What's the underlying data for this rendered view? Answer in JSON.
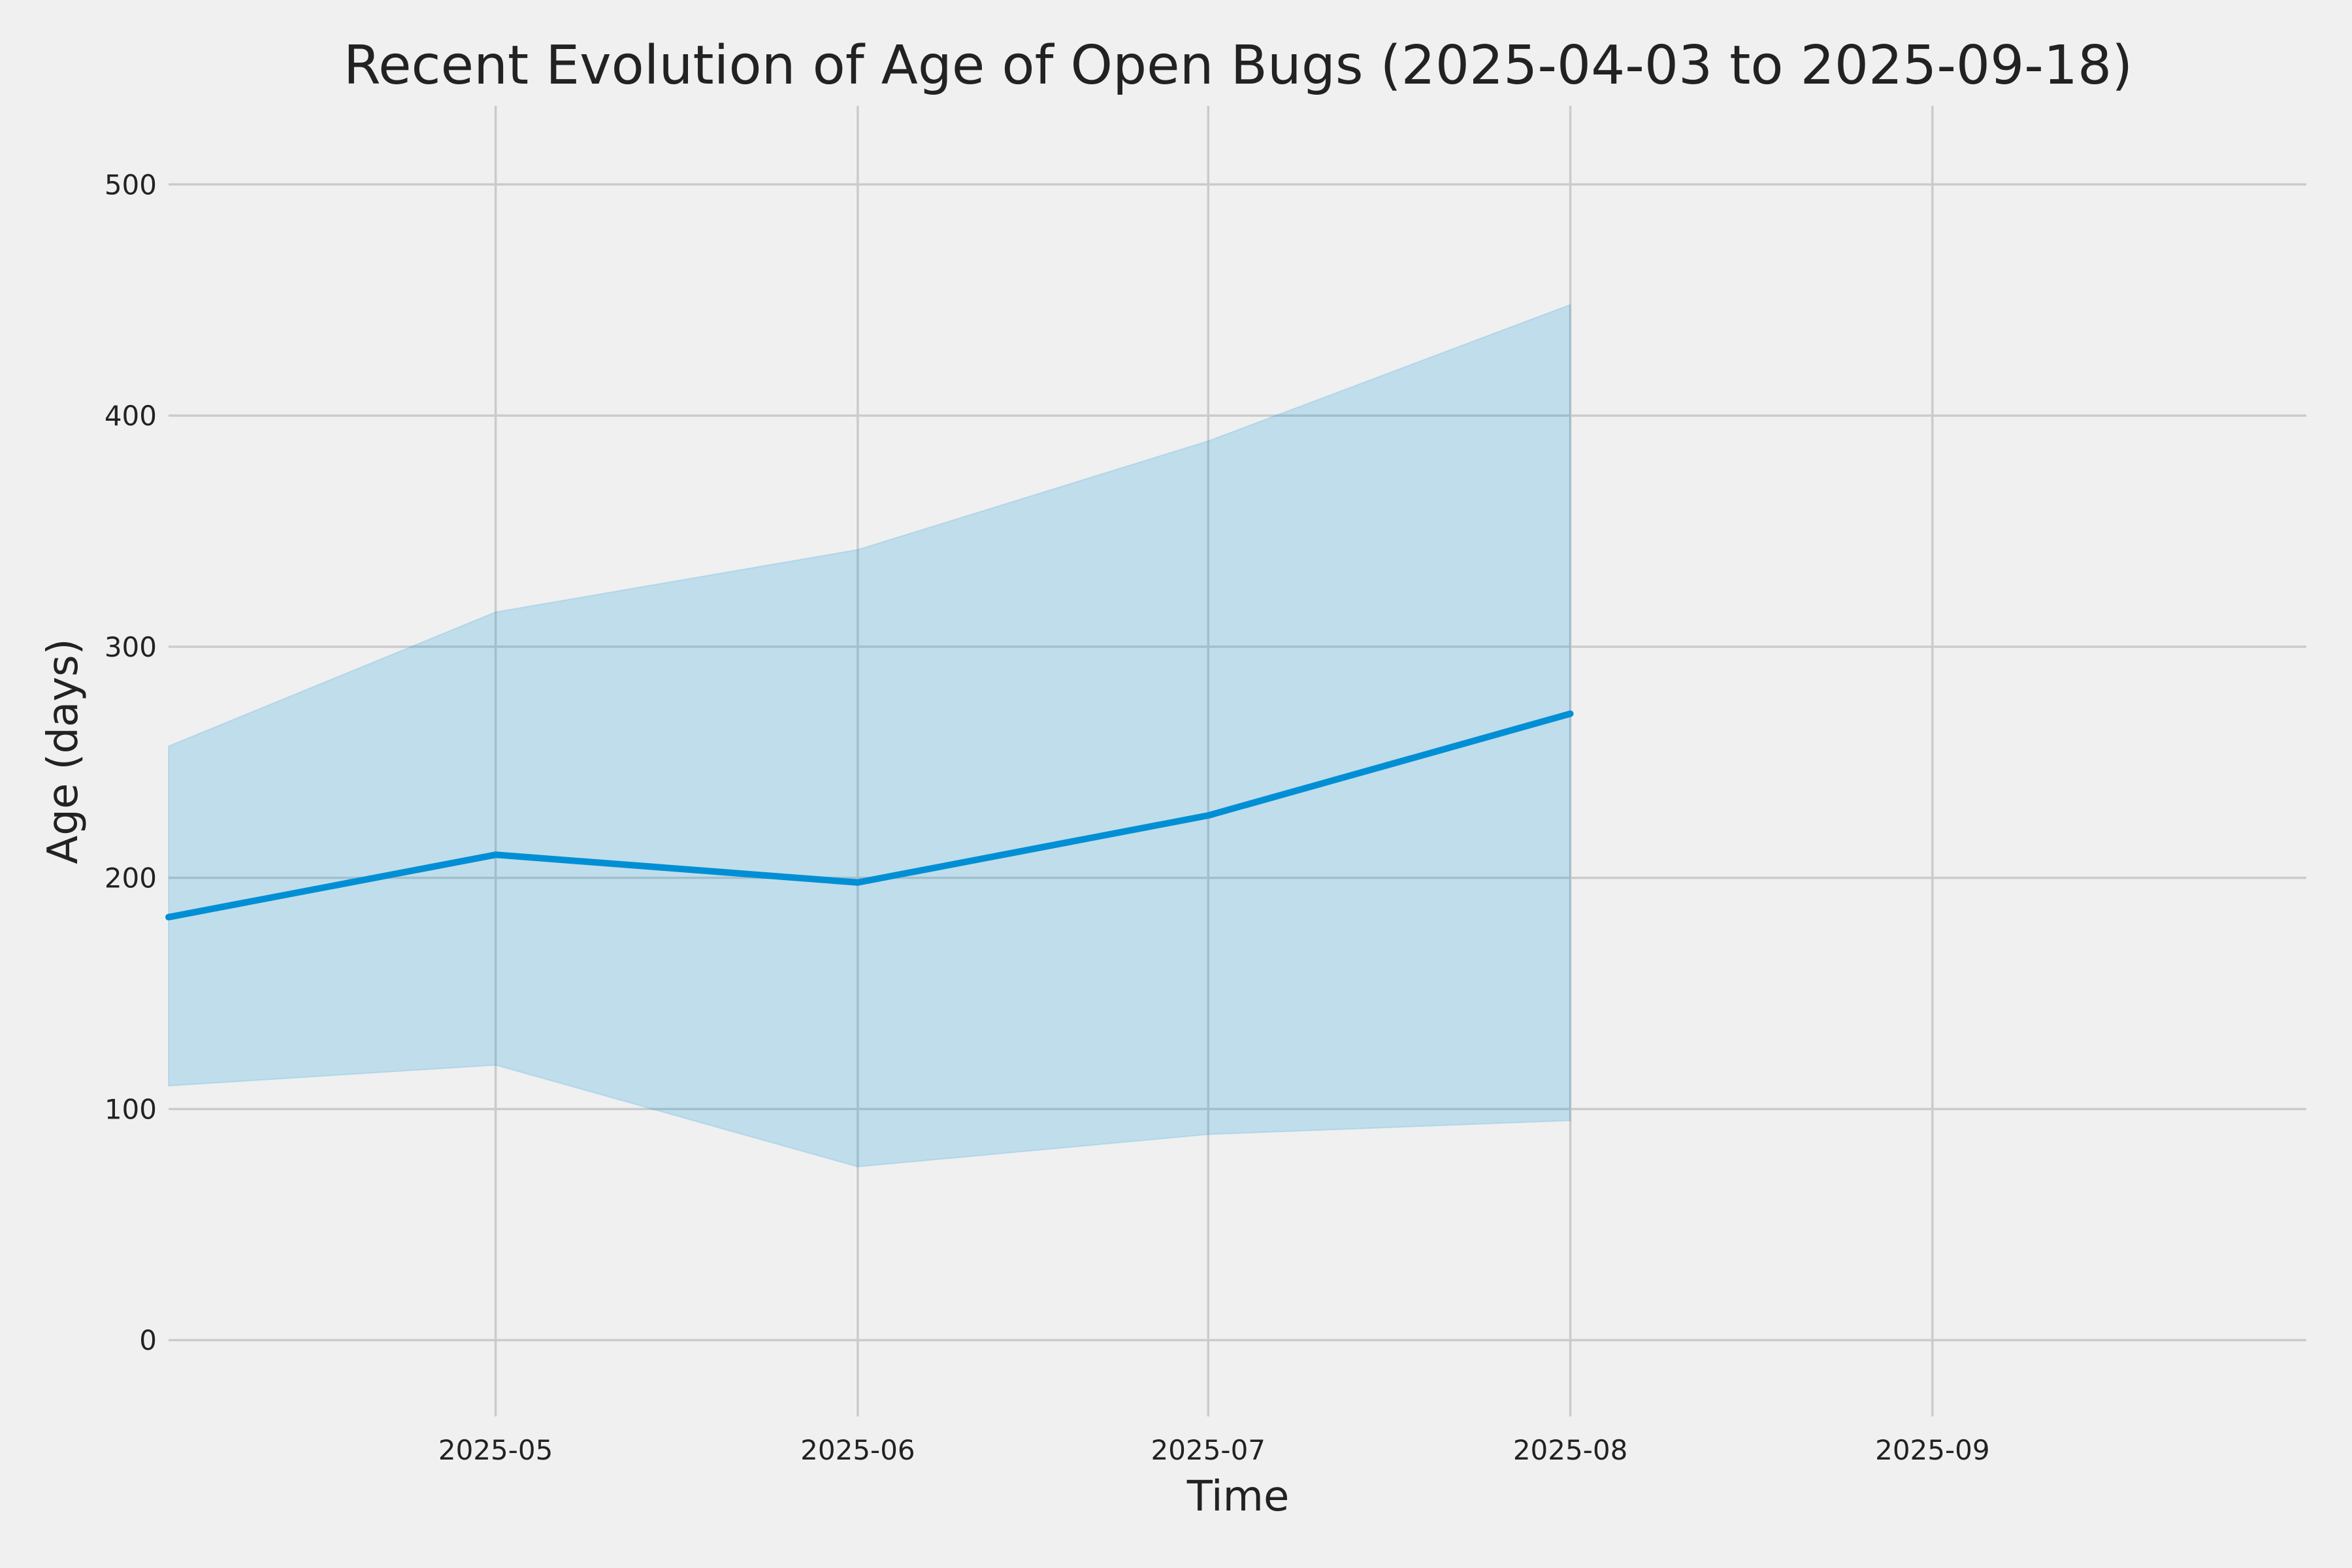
{
  "chart_data": {
    "type": "line",
    "title": "Recent Evolution of Age of Open Bugs (2025-04-03 to 2025-09-18)",
    "xlabel": "Time",
    "ylabel": "Age (days)",
    "x": [
      "2025-04-03",
      "2025-05-01",
      "2025-06-01",
      "2025-07-01",
      "2025-08-01"
    ],
    "xlim": [
      "2025-04-03",
      "2025-09-18"
    ],
    "x_ticks": [
      "2025-05",
      "2025-06",
      "2025-07",
      "2025-08",
      "2025-09"
    ],
    "y_ticks": [
      0,
      100,
      200,
      300,
      400,
      500
    ],
    "ylim": [
      -33,
      534
    ],
    "grid": true,
    "series": [
      {
        "values": [
          183,
          210,
          198,
          227,
          271
        ],
        "band_lower": [
          110,
          119,
          75,
          89,
          95
        ],
        "band_upper": [
          257,
          315,
          342,
          389,
          448
        ],
        "color": "#008fd5",
        "band_color": "#008fd5"
      }
    ]
  }
}
